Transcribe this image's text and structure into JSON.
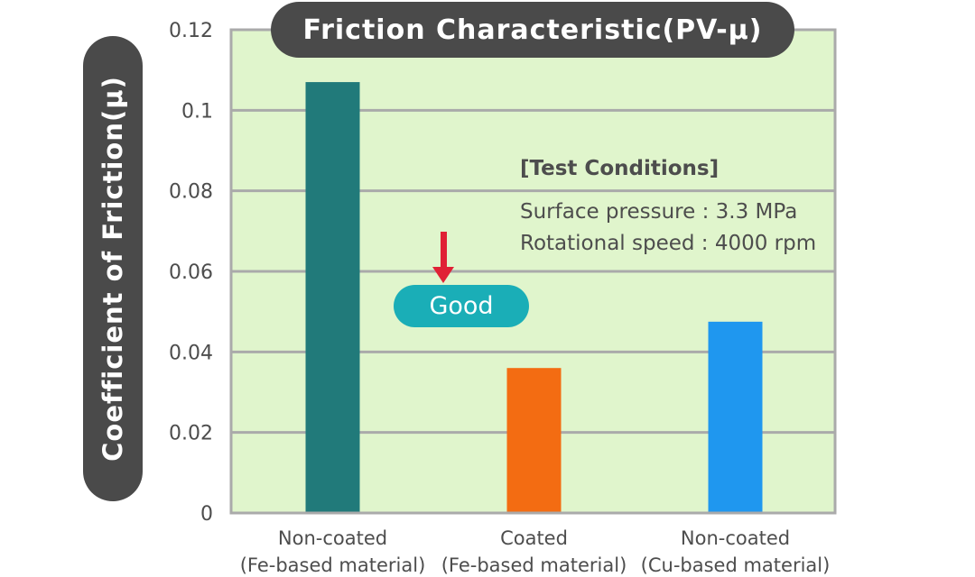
{
  "chart_data": {
    "type": "bar",
    "title": "Friction Characteristic(PV-μ)",
    "ylabel": "Coefficient of Friction(μ)",
    "xlabel": "",
    "ylim": [
      0,
      0.12
    ],
    "yticks": [
      "0",
      "0.02",
      "0.04",
      "0.06",
      "0.08",
      "0.1",
      "0.12"
    ],
    "categories": [
      [
        "Non-coated",
        "(Fe-based material)"
      ],
      [
        "Coated",
        "(Fe-based material)"
      ],
      [
        "Non-coated",
        "(Cu-based material)"
      ]
    ],
    "values": [
      0.107,
      0.036,
      0.0475
    ],
    "colors": [
      "#217a7a",
      "#f36c12",
      "#1f97ef"
    ],
    "grid": true,
    "background": "#e0f5cc",
    "annotations": {
      "test_conditions_heading": "[Test Conditions]",
      "surface_pressure": "Surface pressure : 3.3 MPa",
      "rotational_speed": "Rotational speed : 4000 rpm",
      "good_label": "Good"
    }
  }
}
